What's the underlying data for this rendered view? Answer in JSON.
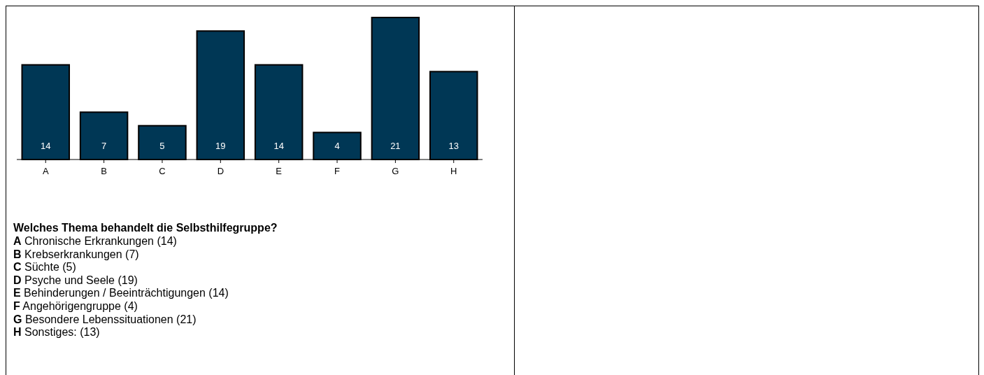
{
  "chart_data": {
    "type": "bar",
    "title": "Welches Thema behandelt die Selbsthilfegruppe?",
    "categories": [
      "A",
      "B",
      "C",
      "D",
      "E",
      "F",
      "G",
      "H"
    ],
    "values": [
      14,
      7,
      5,
      19,
      14,
      4,
      21,
      13
    ],
    "color": "#003755",
    "data_labels": true,
    "annotations": [
      "A Chronische Erkrankungen (14)",
      "B Krebserkrankungen (7)",
      "C Süchte (5)",
      "D Psyche und Seele (19)",
      "E Behinderungen / Beeinträchtigungen (14)",
      "F Angehörigengruppe (4)",
      "G Besondere Lebenssituationen (21)",
      "H Sonstiges: (13)"
    ]
  }
}
